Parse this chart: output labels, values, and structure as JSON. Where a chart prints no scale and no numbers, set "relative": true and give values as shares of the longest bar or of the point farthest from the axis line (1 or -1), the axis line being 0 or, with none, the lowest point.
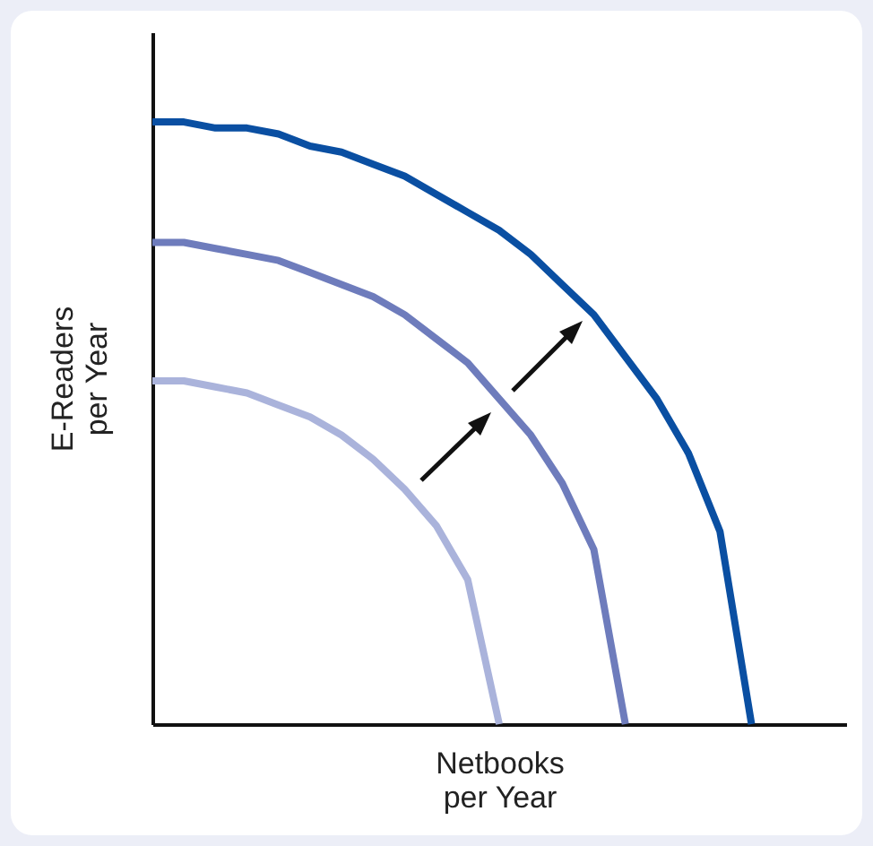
{
  "chart_data": {
    "type": "line",
    "relative": true,
    "xlabel": "Netbooks\nper Year",
    "ylabel": "E-Readers\nper Year",
    "marker": "none",
    "line_style": "solid",
    "categories": [
      null,
      null,
      null,
      null,
      null,
      null,
      null,
      null,
      null,
      null,
      null,
      null,
      null,
      null,
      null,
      null,
      null,
      null,
      null,
      null,
      null,
      null,
      null
    ],
    "series": [
      {
        "color": "#aab3db",
        "values": [
          0.57,
          0.57,
          0.56,
          0.55,
          0.53,
          0.51,
          0.48,
          0.44,
          0.39,
          0.33,
          0.24,
          0,
          null,
          null,
          null,
          null,
          null,
          null,
          null,
          null,
          null,
          null,
          null
        ]
      },
      {
        "color": "#6e7cbc",
        "values": [
          0.8,
          0.8,
          0.79,
          0.78,
          0.77,
          0.75,
          0.73,
          0.71,
          0.68,
          0.64,
          0.6,
          0.54,
          0.48,
          0.4,
          0.29,
          0,
          null,
          null,
          null,
          null,
          null,
          null,
          null
        ]
      },
      {
        "color": "#0a4fa2",
        "values": [
          1,
          1,
          0.99,
          0.99,
          0.98,
          0.96,
          0.95,
          0.93,
          0.91,
          0.88,
          0.85,
          0.82,
          0.78,
          0.73,
          0.68,
          0.61,
          0.54,
          0.45,
          0.32,
          0,
          null,
          null,
          null
        ]
      }
    ]
  }
}
